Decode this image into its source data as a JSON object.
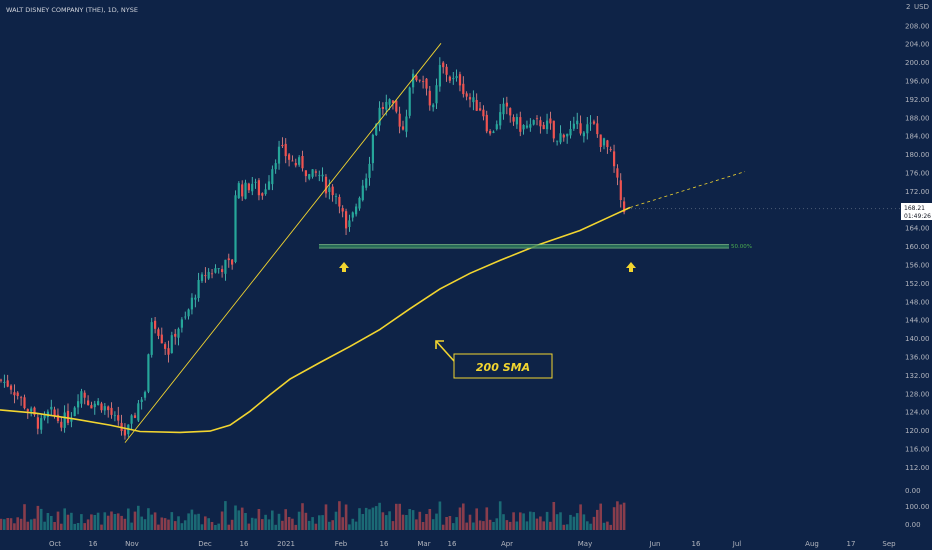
{
  "header": {
    "title": "WALT DISNEY COMPANY (THE), 1D, NYSE",
    "currency": "USD",
    "top_label": "2"
  },
  "colors": {
    "background": "#0e2347",
    "up": "#26a69a",
    "down": "#ef5350",
    "up_wick": "#4fd1c5",
    "down_wick": "#f48a88",
    "sma": "#f2d530",
    "trendline": "#f2d530",
    "support": "#2e7d5b",
    "support_label": "#4caf50",
    "grid": "#132c55",
    "axis_text": "#b2b5be",
    "price_tag_bg": "#ffffff",
    "price_tag_text": "#131722"
  },
  "price_tag": {
    "price": "168.21",
    "countdown": "01:49:26"
  },
  "annotations": {
    "sma_label": "200 SMA",
    "fib_label": "50.00%"
  },
  "chart_data": {
    "type": "candlestick",
    "title": "WALT DISNEY COMPANY (THE), 1D, NYSE",
    "y_axis": {
      "min": 112,
      "max": 212,
      "ticks": [
        "208.00",
        "204.00",
        "200.00",
        "196.00",
        "192.00",
        "188.00",
        "184.00",
        "180.00",
        "176.00",
        "172.00",
        "168.00",
        "164.00",
        "160.00",
        "156.00",
        "152.00",
        "148.00",
        "144.00",
        "140.00",
        "136.00",
        "132.00",
        "128.00",
        "124.00",
        "120.00",
        "116.00",
        "112.00"
      ]
    },
    "volume_axis": {
      "ticks": [
        "0.00",
        "100.00",
        "0.00"
      ]
    },
    "x_axis": {
      "labels": [
        "Oct",
        "16",
        "Nov",
        "Dec",
        "16",
        "2021",
        "Feb",
        "16",
        "Mar",
        "16",
        "Apr",
        "May",
        "Jun",
        "16",
        "Jul",
        "Aug",
        "17",
        "Sep"
      ]
    },
    "grid": false,
    "support_level": 160,
    "series": [
      {
        "type": "sma",
        "period": 200,
        "points": [
          [
            0,
            124.5
          ],
          [
            35,
            123.8
          ],
          [
            75,
            122.5
          ],
          [
            110,
            121.2
          ],
          [
            140,
            119.8
          ],
          [
            180,
            119.6
          ],
          [
            210,
            119.9
          ],
          [
            230,
            121.2
          ],
          [
            250,
            124.2
          ],
          [
            270,
            127.8
          ],
          [
            290,
            131.2
          ],
          [
            320,
            134.8
          ],
          [
            350,
            138.3
          ],
          [
            380,
            142.0
          ],
          [
            410,
            146.5
          ],
          [
            440,
            150.8
          ],
          [
            470,
            154.2
          ],
          [
            500,
            157.0
          ],
          [
            540,
            160.5
          ],
          [
            580,
            163.5
          ],
          [
            610,
            166.5
          ],
          [
            630,
            168.5
          ]
        ]
      },
      {
        "type": "projection",
        "points": [
          [
            630,
            168.5
          ],
          [
            745,
            176.3
          ]
        ]
      },
      {
        "type": "trendline",
        "points": [
          [
            125,
            117.4
          ],
          [
            441,
            204.2
          ]
        ]
      }
    ]
  }
}
